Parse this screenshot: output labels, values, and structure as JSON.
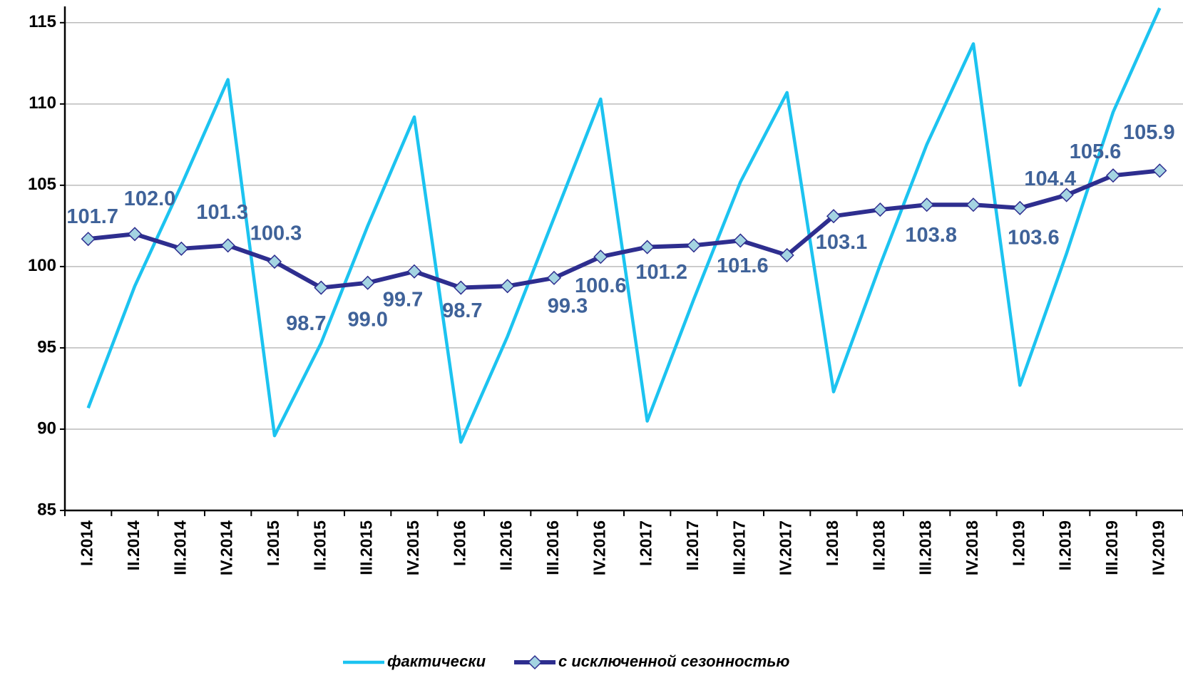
{
  "chart_data": {
    "type": "line",
    "categories": [
      "I.2014",
      "II.2014",
      "III.2014",
      "IV.2014",
      "I.2015",
      "II.2015",
      "III.2015",
      "IV.2015",
      "I.2016",
      "II.2016",
      "III.2016",
      "IV.2016",
      "I.2017",
      "II.2017",
      "III.2017",
      "IV.2017",
      "I.2018",
      "II.2018",
      "III.2018",
      "IV.2018",
      "I.2019",
      "II.2019",
      "III.2019",
      "IV.2019"
    ],
    "series": [
      {
        "name": "фактически",
        "color": "#1CC3F0",
        "marker": false,
        "values": [
          91.3,
          98.8,
          105.0,
          111.5,
          89.6,
          95.3,
          102.5,
          109.2,
          89.2,
          95.7,
          103.0,
          110.3,
          90.5,
          98.0,
          105.2,
          110.7,
          92.3,
          100.1,
          107.5,
          113.7,
          92.7,
          100.8,
          109.5,
          115.9
        ]
      },
      {
        "name": "с исключенной сезонностью",
        "color": "#2E2E8F",
        "marker": true,
        "values": [
          101.7,
          102.0,
          101.1,
          101.3,
          100.3,
          98.7,
          99.0,
          99.7,
          98.7,
          98.8,
          99.3,
          100.6,
          101.2,
          101.3,
          101.6,
          100.7,
          103.1,
          103.5,
          103.8,
          103.8,
          103.6,
          104.4,
          105.6,
          105.9
        ],
        "value_labels": [
          "101.7",
          "102.0",
          null,
          "101.3",
          "100.3",
          "98.7",
          "99.0",
          "99.7",
          "98.7",
          null,
          "99.3",
          "100.6",
          "101.2",
          null,
          "101.6",
          null,
          "103.1",
          null,
          "103.8",
          null,
          "103.6",
          "104.4",
          "105.6",
          "105.9"
        ]
      }
    ],
    "ylim": [
      85,
      116
    ],
    "yticks": [
      85,
      90,
      95,
      100,
      105,
      110,
      115
    ],
    "grid": true,
    "legend": "bottom"
  }
}
